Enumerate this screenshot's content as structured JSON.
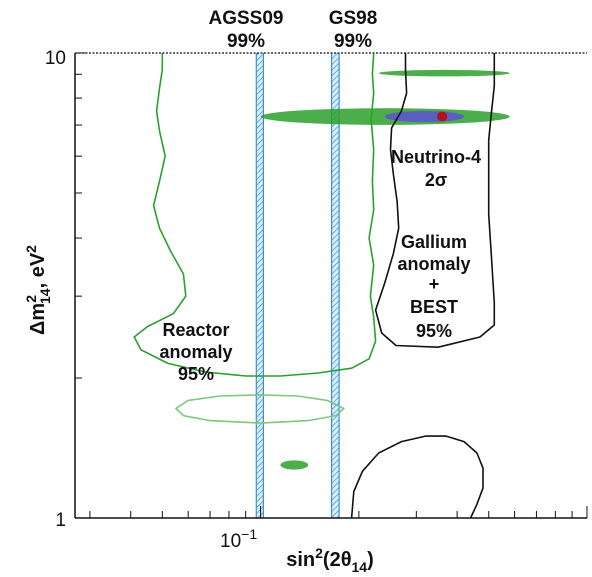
{
  "chart_data": {
    "type": "contour",
    "xlabel": {
      "base": "sin",
      "sup1": "2",
      "mid": "(2θ",
      "sub": "14",
      "end": ")"
    },
    "ylabel": {
      "pre": "Δm",
      "sup": "2",
      "sub": "14",
      "post": ", eV",
      "sup2": "2"
    },
    "x_scale": "log",
    "y_scale": "log",
    "xlim": [
      0.027,
      1.0
    ],
    "ylim": [
      1,
      10
    ],
    "x_tick_labels": [
      {
        "value": 0.1,
        "base": "10",
        "exp": "−1"
      }
    ],
    "y_tick_labels": [
      {
        "value": 1,
        "text": "1"
      },
      {
        "value": 10,
        "text": "10"
      }
    ],
    "vertical_bands": [
      {
        "name": "AGSS09",
        "level": "99%",
        "x_low": 0.097,
        "x_high": 0.102,
        "color": "#3a8fd8"
      },
      {
        "name": "GS98",
        "level": "99%",
        "x_low": 0.165,
        "x_high": 0.174,
        "color": "#3a8fd8"
      }
    ],
    "region_labels": {
      "reactor": [
        "Reactor",
        "anomaly",
        "95%"
      ],
      "neutrino4": [
        "Neutrino-4",
        "2σ"
      ],
      "gallium": [
        "Gallium",
        "anomaly",
        "+",
        "BEST",
        "95%"
      ]
    },
    "best_fit_point": {
      "x": 0.36,
      "y": 7.3,
      "color": "#b5121b"
    },
    "contours": [
      {
        "id": "reactor-95",
        "color": "#2ca02c",
        "points": [
          [
            0.05,
            10
          ],
          [
            0.05,
            9.2
          ],
          [
            0.049,
            8.4
          ],
          [
            0.048,
            7.5
          ],
          [
            0.049,
            6.8
          ],
          [
            0.051,
            6.0
          ],
          [
            0.049,
            5.3
          ],
          [
            0.047,
            4.7
          ],
          [
            0.049,
            4.2
          ],
          [
            0.053,
            3.75
          ],
          [
            0.058,
            3.35
          ],
          [
            0.059,
            3.0
          ],
          [
            0.054,
            2.75
          ],
          [
            0.045,
            2.58
          ],
          [
            0.041,
            2.45
          ],
          [
            0.043,
            2.3
          ],
          [
            0.052,
            2.15
          ],
          [
            0.068,
            2.06
          ],
          [
            0.09,
            2.02
          ],
          [
            0.115,
            2.02
          ],
          [
            0.15,
            2.05
          ],
          [
            0.19,
            2.1
          ],
          [
            0.215,
            2.2
          ],
          [
            0.225,
            2.4
          ],
          [
            0.222,
            2.7
          ],
          [
            0.217,
            3.0
          ],
          [
            0.222,
            3.5
          ],
          [
            0.215,
            4.0
          ],
          [
            0.222,
            4.6
          ],
          [
            0.22,
            5.3
          ],
          [
            0.222,
            6.2
          ],
          [
            0.218,
            7.2
          ],
          [
            0.222,
            8.2
          ],
          [
            0.22,
            9.0
          ],
          [
            0.222,
            10
          ]
        ]
      },
      {
        "id": "reactor-island",
        "color": "#7ec87e",
        "points": [
          [
            0.055,
            1.72
          ],
          [
            0.06,
            1.79
          ],
          [
            0.075,
            1.83
          ],
          [
            0.1,
            1.84
          ],
          [
            0.13,
            1.83
          ],
          [
            0.16,
            1.79
          ],
          [
            0.18,
            1.72
          ],
          [
            0.17,
            1.66
          ],
          [
            0.14,
            1.62
          ],
          [
            0.1,
            1.6
          ],
          [
            0.07,
            1.62
          ],
          [
            0.058,
            1.66
          ]
        ]
      },
      {
        "id": "gallium-best-95",
        "color": "#111111",
        "points": [
          [
            0.52,
            10
          ],
          [
            0.52,
            9.4
          ],
          [
            0.52,
            8.5
          ],
          [
            0.51,
            7.5
          ],
          [
            0.5,
            6.5
          ],
          [
            0.5,
            5.5
          ],
          [
            0.5,
            4.5
          ],
          [
            0.51,
            3.6
          ],
          [
            0.52,
            2.9
          ],
          [
            0.52,
            2.6
          ],
          [
            0.47,
            2.45
          ],
          [
            0.35,
            2.33
          ],
          [
            0.26,
            2.35
          ],
          [
            0.235,
            2.5
          ],
          [
            0.225,
            2.8
          ],
          [
            0.24,
            3.2
          ],
          [
            0.255,
            3.7
          ],
          [
            0.265,
            4.2
          ],
          [
            0.262,
            4.8
          ],
          [
            0.255,
            5.5
          ],
          [
            0.25,
            6.2
          ],
          [
            0.252,
            6.9
          ],
          [
            0.27,
            7.5
          ],
          [
            0.28,
            8.2
          ],
          [
            0.278,
            9.2
          ],
          [
            0.278,
            10
          ]
        ]
      },
      {
        "id": "gallium-best-lower",
        "color": "#111111",
        "points": [
          [
            0.19,
            1
          ],
          [
            0.193,
            1.14
          ],
          [
            0.205,
            1.26
          ],
          [
            0.23,
            1.38
          ],
          [
            0.27,
            1.46
          ],
          [
            0.32,
            1.5
          ],
          [
            0.37,
            1.5
          ],
          [
            0.42,
            1.46
          ],
          [
            0.46,
            1.38
          ],
          [
            0.48,
            1.28
          ],
          [
            0.48,
            1.16
          ],
          [
            0.46,
            1.07
          ],
          [
            0.44,
            1
          ]
        ]
      }
    ],
    "filled_regions": [
      {
        "id": "n4-upper",
        "color": "#2ca02c",
        "x_range": [
          0.23,
          0.58
        ],
        "y": 9.05,
        "half_height": 0.007
      },
      {
        "id": "n4-main",
        "color": "#2ca02c",
        "x_range": [
          0.1,
          0.58
        ],
        "y": 7.3,
        "half_height": 0.018
      },
      {
        "id": "n4-lower",
        "color": "#2ca02c",
        "x_range": [
          0.115,
          0.14
        ],
        "y": 1.3,
        "half_height": 0.01
      }
    ],
    "core_region": {
      "color": "#5a5fc0",
      "x_range": [
        0.24,
        0.42
      ],
      "y": 7.3,
      "half_height": 0.012
    },
    "grid": false,
    "legend": "none"
  }
}
